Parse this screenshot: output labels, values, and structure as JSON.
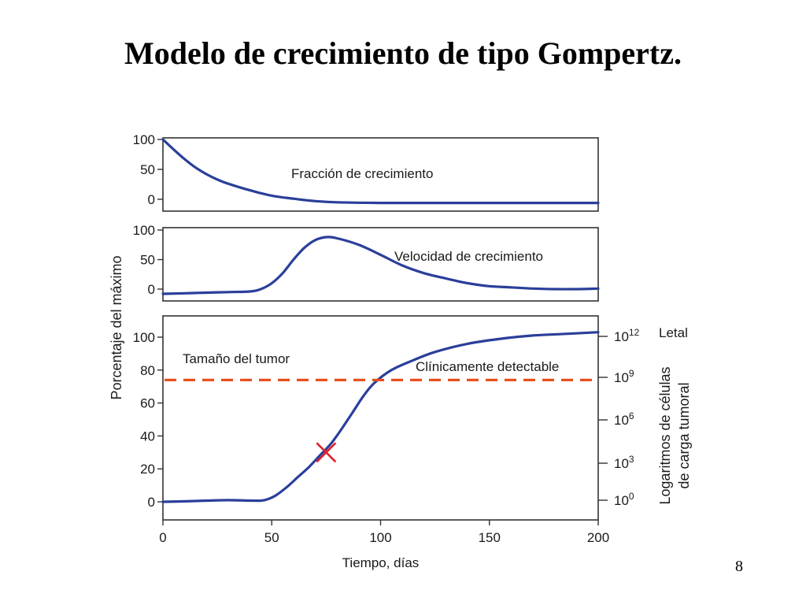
{
  "slide": {
    "title": "Modelo de crecimiento de tipo Gompertz.",
    "page_number": "8"
  },
  "colors": {
    "curve": "#2a3f9a",
    "threshold": "#e8501e",
    "marker": "#e0202a",
    "axis": "#333333"
  },
  "chart_data": [
    {
      "type": "line",
      "panel": "top",
      "label": "Fracción de crecimiento",
      "ylim": [
        -10,
        100
      ],
      "yticks": [
        100,
        50,
        0
      ],
      "xlim": [
        0,
        200
      ],
      "x": [
        0,
        5,
        10,
        15,
        20,
        25,
        30,
        40,
        50,
        60,
        70,
        80,
        100,
        120,
        150,
        200
      ],
      "values": [
        100,
        83,
        67,
        53,
        42,
        33,
        26,
        15,
        6,
        1,
        -3,
        -5,
        -6,
        -6,
        -6,
        -6
      ]
    },
    {
      "type": "line",
      "panel": "middle",
      "label": "Velocidad de crecimiento",
      "ylim": [
        -10,
        100
      ],
      "yticks": [
        100,
        50,
        0
      ],
      "xlim": [
        0,
        200
      ],
      "x": [
        0,
        10,
        20,
        30,
        40,
        45,
        50,
        55,
        60,
        65,
        70,
        75,
        80,
        90,
        100,
        110,
        120,
        130,
        140,
        150,
        160,
        170,
        180,
        190,
        200
      ],
      "values": [
        -8,
        -7,
        -6,
        -5,
        -4,
        0,
        10,
        27,
        50,
        70,
        83,
        88,
        86,
        75,
        58,
        40,
        27,
        18,
        10,
        5,
        3,
        1,
        0,
        0,
        1
      ]
    },
    {
      "type": "line",
      "panel": "bottom",
      "title": "Tamaño del tumor",
      "xlabel": "Tiempo, días",
      "ylabel": "Porcentaje del máximo",
      "y2label": "Logaritmos de células de carga tumoral",
      "xlim": [
        0,
        200
      ],
      "ylim": [
        -10,
        110
      ],
      "xticks": [
        0,
        50,
        100,
        150,
        200
      ],
      "yticks": [
        100,
        80,
        60,
        40,
        20,
        0
      ],
      "y2ticks": [
        {
          "base": "10",
          "exp": "12",
          "y": 100
        },
        {
          "base": "10",
          "exp": "9",
          "y": 75
        },
        {
          "base": "10",
          "exp": "6",
          "y": 50
        },
        {
          "base": "10",
          "exp": "3",
          "y": 23
        },
        {
          "base": "10",
          "exp": "0",
          "y": 0
        }
      ],
      "x": [
        0,
        10,
        20,
        30,
        40,
        45,
        48,
        52,
        57,
        62,
        67,
        72,
        77,
        82,
        87,
        92,
        97,
        105,
        115,
        125,
        140,
        155,
        170,
        185,
        200
      ],
      "values": [
        0,
        0.3,
        0.7,
        1,
        0.7,
        0.7,
        1.5,
        4,
        9,
        15,
        21,
        28,
        35,
        44,
        54,
        64,
        72,
        80,
        86,
        91,
        96,
        99,
        101,
        102,
        103
      ],
      "threshold": {
        "y": 74,
        "label": "Clínicamente detectable"
      },
      "marker": {
        "x": 75,
        "y": 30
      },
      "annotations": {
        "top_right": "Letal"
      }
    }
  ]
}
